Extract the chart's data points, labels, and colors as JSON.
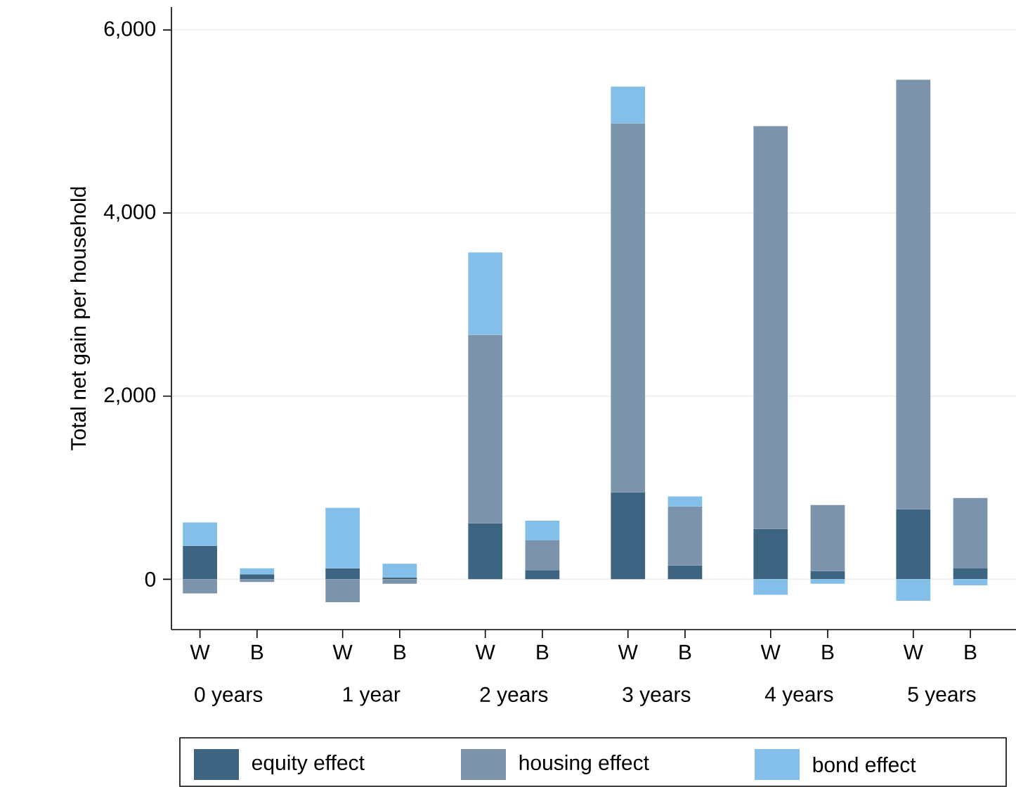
{
  "chart_data": {
    "type": "bar",
    "stacked": true,
    "ylabel": "Total net gain per household",
    "categories": [
      "W",
      "B",
      "W",
      "B",
      "W",
      "B",
      "W",
      "B",
      "W",
      "B",
      "W",
      "B"
    ],
    "annotations": [
      "0 years",
      "1 year",
      "2 years",
      "3 years",
      "4 years",
      "5 years"
    ],
    "series": [
      {
        "name": "equity effect",
        "color": "#3d6480",
        "values": [
          365,
          55,
          120,
          20,
          610,
          100,
          950,
          150,
          550,
          88,
          765,
          118
        ]
      },
      {
        "name": "housing effect",
        "color": "#7b93ab",
        "values": [
          -155,
          -30,
          -250,
          -50,
          2060,
          325,
          4030,
          645,
          4400,
          722,
          4690,
          769
        ]
      },
      {
        "name": "bond effect",
        "color": "#83bfe9",
        "values": [
          255,
          65,
          660,
          150,
          900,
          215,
          400,
          110,
          -170,
          -50,
          -235,
          -66
        ]
      }
    ],
    "ylim": [
      -550,
      6250
    ],
    "yticks": [
      0,
      {
        "value": 2000,
        "label": "2,000"
      },
      {
        "value": 4000,
        "label": "4,000"
      },
      {
        "value": 6000,
        "label": "6,000"
      }
    ],
    "grid": "y",
    "legend": "bottom"
  }
}
